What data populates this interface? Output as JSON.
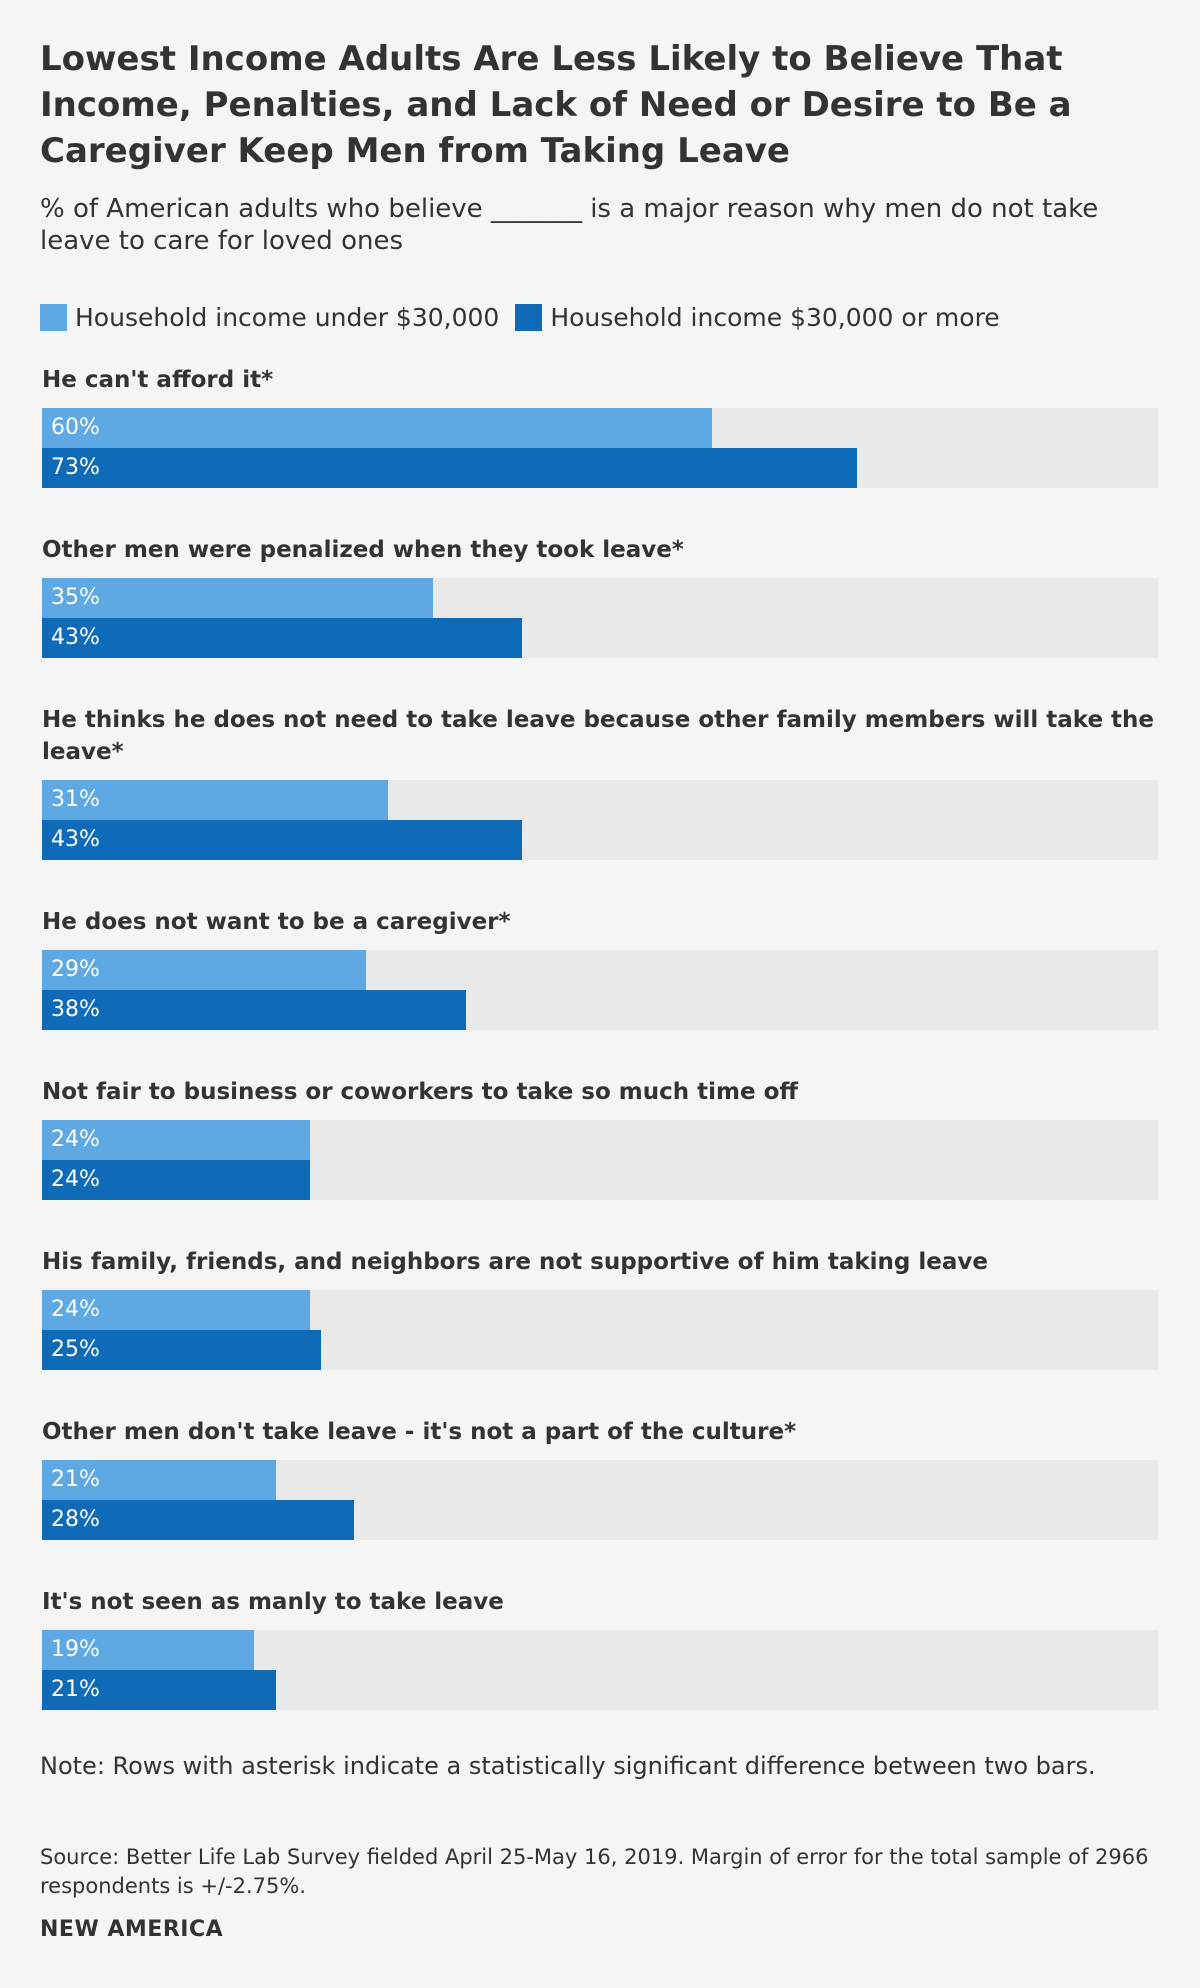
{
  "title": "Lowest Income Adults Are Less Likely to Believe That Income, Penalties, and Lack of Need or Desire to Be a Caregiver Keep Men from Taking Leave",
  "subtitle": "% of American adults who believe _______ is a major reason why men do not take leave to care for loved ones",
  "legend": {
    "low": "Household income under $30,000",
    "high": "Household income $30,000 or more"
  },
  "colors": {
    "low": "#5ea8e3",
    "high": "#0f6bb8",
    "track": "#e9e9e9",
    "background": "#f5f5f5"
  },
  "chart_data": {
    "type": "bar",
    "orientation": "horizontal",
    "title": "Lowest Income Adults Are Less Likely to Believe That Income, Penalties, and Lack of Need or Desire to Be a Caregiver Keep Men from Taking Leave",
    "xlim": [
      0,
      100
    ],
    "categories": [
      "He can't afford it*",
      "Other men were penalized when they took leave*",
      "He thinks he does not need to take leave because other family members will take the leave*",
      "He does not want to be a caregiver*",
      "Not fair to business or coworkers to take so much time off",
      "His family, friends, and neighbors are not supportive of him taking leave",
      "Other men don't take leave - it's not a part of the culture*",
      "It's not seen as manly to take leave"
    ],
    "series": [
      {
        "name": "Household income under $30,000",
        "values": [
          60,
          35,
          31,
          29,
          24,
          24,
          21,
          19
        ]
      },
      {
        "name": "Household income $30,000 or more",
        "values": [
          73,
          43,
          43,
          38,
          24,
          25,
          28,
          21
        ]
      }
    ],
    "value_suffix": "%",
    "legend_position": "top"
  },
  "note": "Note: Rows with asterisk indicate a statistically significant difference between two bars.",
  "source": "Source: Better Life Lab Survey fielded April 25-May 16, 2019. Margin of error for the total sample of 2966 respondents is +/-2.75%.",
  "brand": "NEW AMERICA"
}
